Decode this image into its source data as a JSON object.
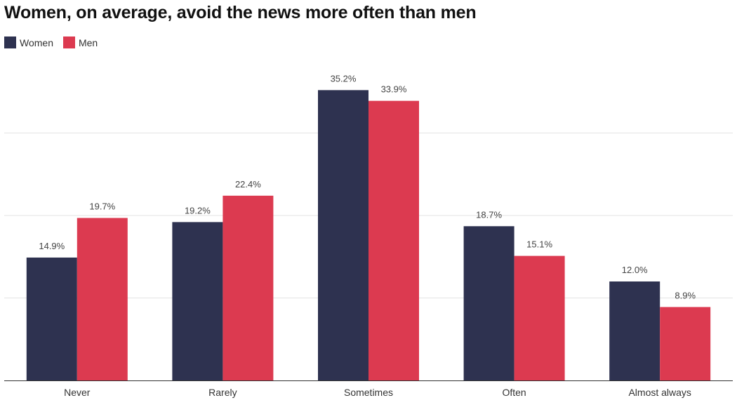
{
  "chart_data": {
    "type": "bar",
    "title": "Women, on average, avoid the news more often than men",
    "categories": [
      "Never",
      "Rarely",
      "Sometimes",
      "Often",
      "Almost always"
    ],
    "series": [
      {
        "name": "Women",
        "color": "#2e3250",
        "values": [
          14.9,
          19.2,
          35.2,
          18.7,
          12.0
        ],
        "labels": [
          "14.9%",
          "19.2%",
          "35.2%",
          "18.7%",
          "12.0%"
        ]
      },
      {
        "name": "Men",
        "color": "#dc3a50",
        "values": [
          19.7,
          22.4,
          33.9,
          15.1,
          8.9
        ],
        "labels": [
          "19.7%",
          "22.4%",
          "33.9%",
          "15.1%",
          "8.9%"
        ]
      }
    ],
    "ylim": [
      0,
      40
    ],
    "grid": true,
    "legend_position": "top-left"
  }
}
